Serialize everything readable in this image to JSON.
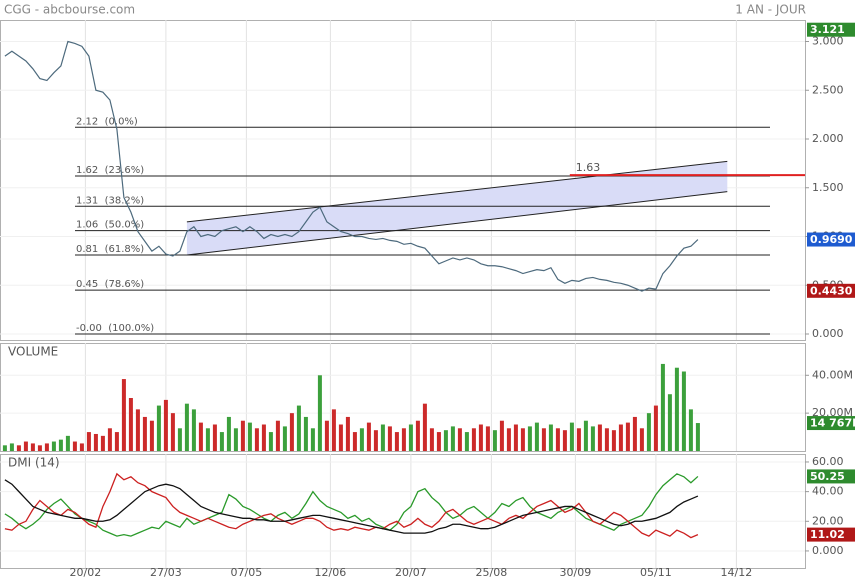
{
  "header": {
    "source": "CGG - abcbourse.com",
    "period": "1 AN - JOUR"
  },
  "chart_data": [
    {
      "type": "line",
      "series": [
        {
          "color": "#4d6a7d",
          "values": [
            2.85,
            2.9,
            2.85,
            2.8,
            2.72,
            2.62,
            2.6,
            2.68,
            2.75,
            3.0,
            2.98,
            2.95,
            2.85,
            2.5,
            2.48,
            2.4,
            2.1,
            1.4,
            1.25,
            1.05,
            0.95,
            0.85,
            0.9,
            0.82,
            0.8,
            0.85,
            1.05,
            1.1,
            1.0,
            1.02,
            1.0,
            1.06,
            1.08,
            1.1,
            1.05,
            1.1,
            1.05,
            0.98,
            1.02,
            1.0,
            1.02,
            1.0,
            1.05,
            1.15,
            1.25,
            1.3,
            1.15,
            1.1,
            1.05,
            1.03,
            1.0,
            1.0,
            0.98,
            0.97,
            0.98,
            0.96,
            0.95,
            0.92,
            0.93,
            0.9,
            0.88,
            0.8,
            0.72,
            0.75,
            0.78,
            0.76,
            0.78,
            0.76,
            0.72,
            0.7,
            0.7,
            0.69,
            0.67,
            0.65,
            0.62,
            0.64,
            0.66,
            0.65,
            0.68,
            0.56,
            0.52,
            0.55,
            0.54,
            0.57,
            0.58,
            0.56,
            0.55,
            0.53,
            0.52,
            0.5,
            0.47,
            0.44,
            0.47,
            0.46,
            0.62,
            0.7,
            0.8,
            0.88,
            0.9,
            0.969
          ]
        }
      ],
      "xlim": [
        -0.7,
        114.3
      ],
      "ylim": [
        -0.0615,
        3.2
      ],
      "yticks": [
        {
          "value": 3,
          "label": "3.000"
        },
        {
          "value": 2.5,
          "label": "2.500"
        },
        {
          "value": 2,
          "label": "2.000"
        },
        {
          "value": 1.5,
          "label": "1.500"
        },
        {
          "value": 1,
          "label": "1.000"
        },
        {
          "value": 0.5,
          "label": "0.500"
        },
        {
          "value": 0,
          "label": "0.000"
        }
      ],
      "fib_levels": [
        {
          "value": 2.12,
          "label": "2.12  (0.0%)"
        },
        {
          "value": 1.62,
          "label": "1.62  (23.6%)"
        },
        {
          "value": 1.31,
          "label": "1.31  (38.2%)"
        },
        {
          "value": 1.06,
          "label": "1.06  (50.0%)"
        },
        {
          "value": 0.81,
          "label": "0.81  (61.8%)"
        },
        {
          "value": 0.45,
          "label": "0.45  (78.6%)"
        },
        {
          "value": 0,
          "label": "-0.00  (100.0%)"
        }
      ],
      "channel": {
        "x": [
          26,
          103.2
        ],
        "upper": [
          1.15,
          1.77
        ],
        "lower": [
          0.81,
          1.46
        ],
        "color": "#d9dcf7"
      },
      "resistance": {
        "value": 1.63,
        "from_x": 80.7,
        "color": "#e02020"
      },
      "value_boxes": [
        {
          "value": 3.121,
          "label": "3.121",
          "color": "#2e8b2e"
        },
        {
          "value": 0.969,
          "label": "0.9690",
          "color": "#1e5bd0"
        },
        {
          "value": 0.443,
          "label": "0.4430",
          "color": "#b01818"
        }
      ]
    },
    {
      "type": "bar",
      "title": "VOLUME",
      "values": [
        3,
        4,
        3,
        5,
        4,
        3,
        4,
        5,
        6,
        8,
        5,
        4,
        10,
        9,
        8,
        12,
        10,
        38,
        28,
        22,
        18,
        16,
        24,
        27,
        20,
        12,
        25,
        22,
        15,
        12,
        14,
        10,
        18,
        12,
        16,
        15,
        12,
        14,
        10,
        16,
        13,
        20,
        24,
        18,
        12,
        40,
        16,
        22,
        14,
        18,
        10,
        12,
        15,
        11,
        14,
        13,
        10,
        12,
        14,
        16,
        25,
        12,
        10,
        11,
        13,
        12,
        10,
        12,
        14,
        13,
        11,
        16,
        12,
        14,
        12,
        13,
        15,
        12,
        14,
        12,
        11,
        15,
        12,
        16,
        13,
        14,
        12,
        11,
        14,
        15,
        18,
        12,
        20,
        24,
        46,
        30,
        44,
        42,
        22,
        14.767
      ],
      "up_color": "#3ca03c",
      "down_color": "#cc2a2a",
      "xlim": [
        -0.7,
        114.3
      ],
      "ylim": [
        0,
        56
      ],
      "yticks": [
        {
          "value": 40,
          "label": "40.00M"
        },
        {
          "value": 20,
          "label": "20.00M"
        }
      ],
      "value_boxes": [
        {
          "value": 14.767,
          "label": "14 767K",
          "color": "#2e8b2e"
        }
      ]
    },
    {
      "type": "line",
      "title": "DMI (14)",
      "series": [
        {
          "color": "#2a9a2a",
          "values": [
            25,
            22,
            18,
            15,
            18,
            22,
            28,
            32,
            35,
            30,
            25,
            22,
            20,
            18,
            14,
            12,
            10,
            11,
            10,
            12,
            14,
            16,
            15,
            20,
            18,
            16,
            22,
            18,
            20,
            22,
            24,
            26,
            38,
            35,
            30,
            28,
            25,
            22,
            20,
            24,
            26,
            22,
            25,
            32,
            40,
            34,
            30,
            28,
            26,
            22,
            24,
            20,
            22,
            18,
            16,
            14,
            18,
            26,
            30,
            40,
            42,
            36,
            32,
            26,
            22,
            24,
            28,
            30,
            26,
            22,
            26,
            32,
            30,
            34,
            36,
            30,
            26,
            24,
            22,
            26,
            28,
            30,
            26,
            22,
            20,
            18,
            16,
            14,
            18,
            20,
            22,
            24,
            30,
            38,
            44,
            48,
            52,
            50,
            46,
            50.25
          ]
        },
        {
          "color": "#cc2020",
          "values": [
            15,
            14,
            18,
            20,
            28,
            34,
            30,
            26,
            24,
            28,
            26,
            22,
            18,
            16,
            30,
            40,
            52,
            48,
            50,
            46,
            44,
            40,
            38,
            36,
            30,
            26,
            24,
            22,
            20,
            22,
            20,
            18,
            16,
            15,
            18,
            20,
            22,
            24,
            25,
            22,
            20,
            18,
            20,
            22,
            22,
            20,
            16,
            14,
            15,
            14,
            16,
            15,
            14,
            16,
            15,
            18,
            20,
            16,
            18,
            22,
            18,
            16,
            20,
            26,
            28,
            24,
            20,
            18,
            20,
            22,
            20,
            18,
            22,
            24,
            22,
            26,
            30,
            32,
            34,
            30,
            26,
            28,
            32,
            26,
            20,
            18,
            22,
            26,
            24,
            20,
            16,
            12,
            10,
            14,
            12,
            10,
            14,
            12,
            9,
            11.02
          ]
        },
        {
          "color": "#111111",
          "values": [
            48,
            45,
            40,
            35,
            30,
            28,
            26,
            25,
            24,
            23,
            22,
            22,
            21,
            20,
            20,
            21,
            24,
            28,
            32,
            36,
            40,
            42,
            44,
            45,
            44,
            42,
            38,
            34,
            30,
            28,
            26,
            25,
            24,
            23,
            22,
            22,
            21,
            21,
            20,
            20,
            20,
            21,
            22,
            23,
            24,
            24,
            23,
            22,
            21,
            20,
            19,
            18,
            17,
            16,
            15,
            14,
            13,
            12,
            12,
            12,
            12,
            13,
            15,
            16,
            18,
            18,
            17,
            16,
            15,
            15,
            16,
            18,
            20,
            22,
            24,
            25,
            26,
            27,
            28,
            29,
            30,
            30,
            28,
            26,
            24,
            22,
            20,
            18,
            17,
            18,
            20,
            20,
            21,
            22,
            24,
            26,
            30,
            33,
            35,
            37
          ]
        }
      ],
      "xlim": [
        -0.7,
        114.3
      ],
      "ylim": [
        -11.5,
        64.7
      ],
      "yticks": [
        {
          "value": 60,
          "label": "60.00"
        },
        {
          "value": 40,
          "label": "40.00"
        },
        {
          "value": 20,
          "label": "20.00"
        },
        {
          "value": 0,
          "label": "0.000"
        }
      ],
      "xticks": [
        {
          "value": 11.5,
          "label": "20/02"
        },
        {
          "value": 23,
          "label": "27/03"
        },
        {
          "value": 34.5,
          "label": "07/05"
        },
        {
          "value": 46.5,
          "label": "12/06"
        },
        {
          "value": 58,
          "label": "20/07"
        },
        {
          "value": 69.5,
          "label": "25/08"
        },
        {
          "value": 81.5,
          "label": "30/09"
        },
        {
          "value": 93,
          "label": "05/11"
        },
        {
          "value": 104.5,
          "label": "14/12"
        }
      ],
      "value_boxes": [
        {
          "value": 50.25,
          "label": "50.25",
          "color": "#2e8b2e"
        },
        {
          "value": 11.02,
          "label": "11.02",
          "color": "#b01818"
        }
      ]
    }
  ]
}
